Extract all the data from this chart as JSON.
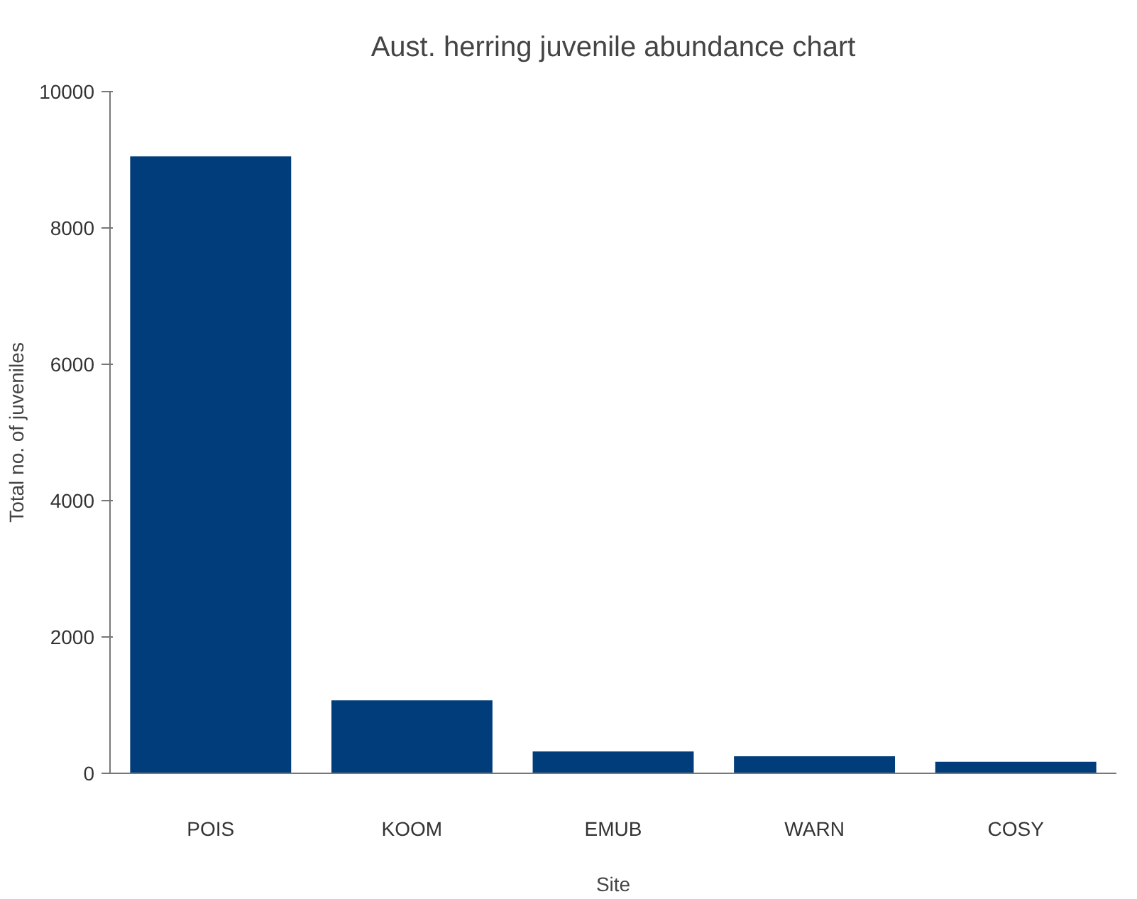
{
  "chart_data": {
    "type": "bar",
    "title": "Aust. herring juvenile abundance chart",
    "xlabel": "Site",
    "ylabel": "Total no. of juveniles",
    "categories": [
      "POIS",
      "KOOM",
      "EMUB",
      "WARN",
      "COSY"
    ],
    "values": [
      9050,
      1070,
      320,
      250,
      170
    ],
    "color": "#003d7a",
    "ylim": [
      0,
      10000
    ],
    "yticks": [
      0,
      2000,
      4000,
      6000,
      8000,
      10000
    ],
    "grid": false
  }
}
